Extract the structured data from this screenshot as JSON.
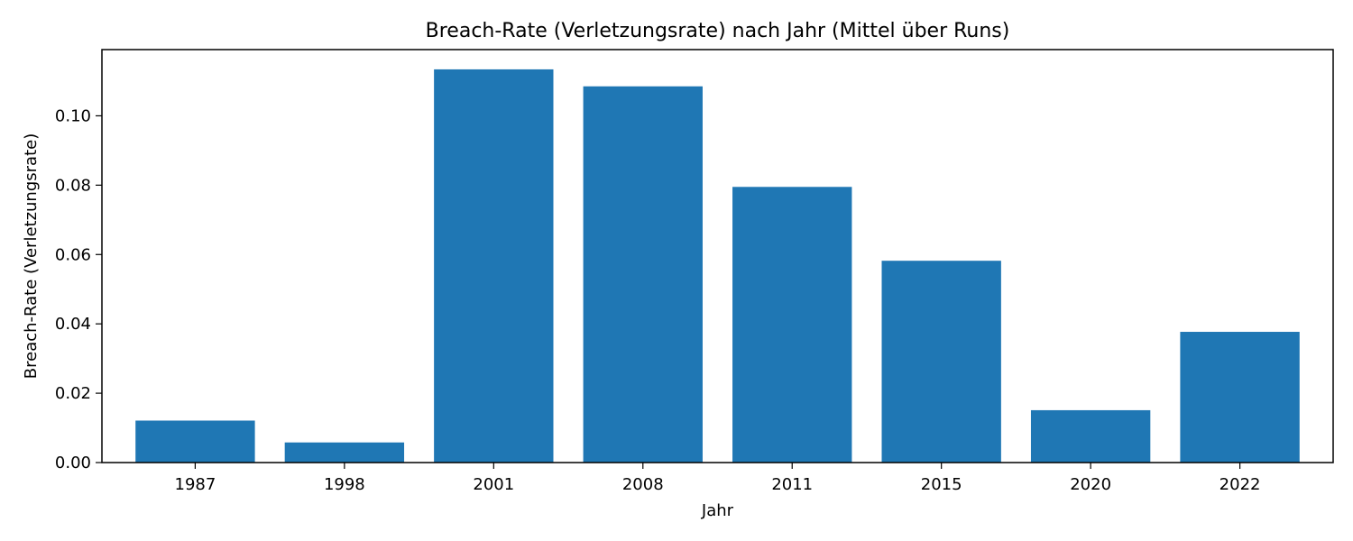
{
  "chart_data": {
    "type": "bar",
    "title": "Breach-Rate (Verletzungsrate) nach Jahr (Mittel über Runs)",
    "xlabel": "Jahr",
    "ylabel": "Breach-Rate (Verletzungsrate)",
    "categories": [
      "1987",
      "1998",
      "2001",
      "2008",
      "2011",
      "2015",
      "2020",
      "2022"
    ],
    "values": [
      0.0121,
      0.0058,
      0.1134,
      0.1085,
      0.0795,
      0.0582,
      0.0151,
      0.0377
    ],
    "ylim": [
      0,
      0.1191
    ],
    "yticks": [
      0.0,
      0.02,
      0.04,
      0.06,
      0.08,
      0.1
    ],
    "ytick_labels": [
      "0.00",
      "0.02",
      "0.04",
      "0.06",
      "0.08",
      "0.10"
    ],
    "bar_color": "#1f77b4",
    "grid": false,
    "legend": "none"
  }
}
